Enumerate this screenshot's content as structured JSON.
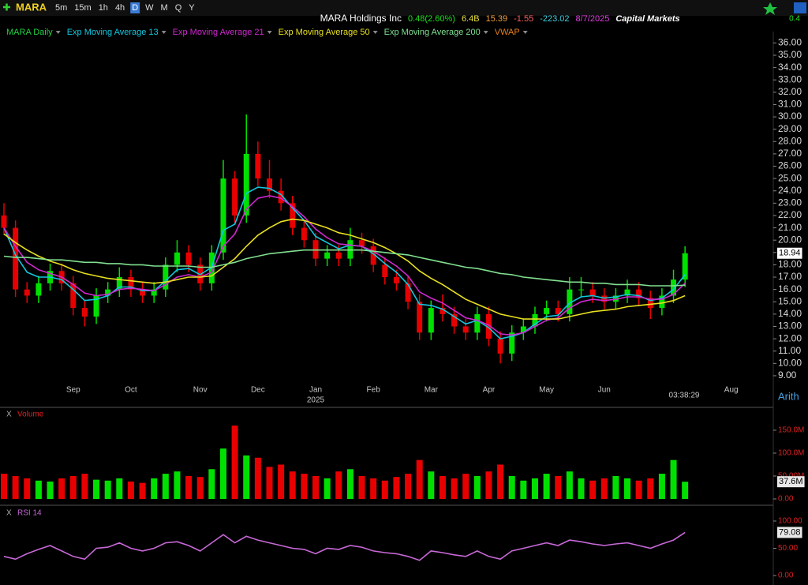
{
  "header": {
    "symbol": "MARA",
    "timeframes": [
      "5m",
      "15m",
      "1h",
      "4h",
      "D",
      "W",
      "M",
      "Q",
      "Y"
    ],
    "active_timeframe": 4,
    "quote": [
      {
        "text": "MARA Holdings Inc",
        "color": "#ffffff"
      },
      {
        "text": "0.48(2.60%)",
        "color": "#20e020"
      },
      {
        "text": "6.4B",
        "color": "#e8e040"
      },
      {
        "text": "15.39",
        "color": "#f0a040"
      },
      {
        "text": "-1.55",
        "color": "#ff6060"
      },
      {
        "text": "-223.02",
        "color": "#40d0e0"
      },
      {
        "text": "8/7/2025",
        "color": "#e040e0"
      },
      {
        "text": "Capital Markets",
        "color": "#ffffff"
      }
    ],
    "corner_value": "0.4"
  },
  "chart_data": [
    {
      "type": "candlestick",
      "title": "MARA Daily",
      "title_color": "#20d040",
      "up_color": "#00e000",
      "down_color": "#e80000",
      "categories": [
        null,
        null,
        null,
        null,
        null,
        null,
        "Sep",
        null,
        null,
        null,
        null,
        "Oct",
        null,
        null,
        null,
        null,
        null,
        "Nov",
        null,
        null,
        null,
        null,
        "Dec",
        null,
        null,
        null,
        null,
        "Jan",
        null,
        null,
        null,
        null,
        "Feb",
        null,
        null,
        null,
        null,
        "Mar",
        null,
        null,
        null,
        null,
        "Apr",
        null,
        null,
        null,
        null,
        "May",
        null,
        null,
        null,
        null,
        "Jun",
        null,
        null,
        null,
        null,
        null,
        null,
        null,
        null,
        null,
        null,
        "Aug"
      ],
      "year_label": "2025",
      "timestamp": "03:38:29",
      "scale_label": "Arith",
      "open": [
        22,
        21,
        16,
        15.5,
        16.5,
        17.5,
        16.5,
        14.5,
        13.8,
        15.5,
        16,
        17,
        16,
        15.5,
        16,
        18,
        19,
        18,
        16.5,
        19,
        25,
        22,
        27,
        25,
        24,
        23,
        21,
        20,
        18.5,
        19,
        18.5,
        20,
        19.5,
        18,
        17,
        16.5,
        15,
        12.5,
        14.5,
        14,
        13,
        12.5,
        14,
        12,
        10.8,
        12.5,
        13,
        14,
        14.5,
        14,
        16,
        16,
        15.5,
        15,
        15.5,
        16,
        15.3,
        14.5,
        15.5,
        16.8,
        null,
        null,
        null,
        null
      ],
      "high": [
        23,
        21.6,
        16.6,
        17.1,
        18.1,
        18.1,
        17.1,
        15.1,
        16.1,
        16.6,
        17.8,
        17.6,
        16.6,
        16.6,
        18.6,
        20,
        19.6,
        18.6,
        19.6,
        26.5,
        25.6,
        30.2,
        28,
        26.5,
        25,
        23.6,
        21.6,
        20.6,
        19.6,
        19.6,
        21,
        20.6,
        20.1,
        18.6,
        17.6,
        17.1,
        15.6,
        15.1,
        15.6,
        14.6,
        13.6,
        14.6,
        14.6,
        12.6,
        13.1,
        13.6,
        14.6,
        15.1,
        15.1,
        17,
        17,
        16.6,
        16.1,
        16.1,
        16.8,
        16.6,
        15.9,
        16.1,
        17.6,
        19.5,
        null,
        null,
        null,
        null
      ],
      "low": [
        20.4,
        15.4,
        14.9,
        14.9,
        15.9,
        15.9,
        13.9,
        13,
        13.2,
        14.9,
        15.4,
        15.4,
        14.9,
        14.9,
        15.4,
        17.4,
        17.4,
        15.9,
        15.9,
        18.4,
        21.4,
        21.4,
        24.4,
        23.4,
        22.4,
        20.4,
        19.4,
        17.9,
        17.9,
        17.9,
        17.9,
        18.9,
        17.4,
        16.4,
        15.9,
        14.4,
        11.9,
        11.9,
        13.4,
        12.4,
        11.9,
        11.9,
        11.4,
        10,
        10.2,
        11.9,
        12.4,
        13.4,
        13.4,
        13.4,
        15.4,
        14.9,
        14.4,
        14.4,
        14.9,
        14.7,
        13.6,
        13.9,
        14.9,
        16.2,
        null,
        null,
        null,
        null
      ],
      "close": [
        21,
        16,
        15.5,
        16.5,
        17.5,
        16.5,
        14.5,
        13.8,
        15.5,
        16,
        17,
        16,
        15.5,
        16,
        18,
        19,
        18,
        16.5,
        19,
        25,
        22,
        27,
        25,
        24,
        23,
        21,
        20,
        18.5,
        19,
        18.5,
        20,
        19.5,
        18,
        17,
        16.5,
        15,
        12.5,
        14.5,
        14,
        13,
        12.5,
        14,
        12,
        10.8,
        12.5,
        13,
        14,
        14.5,
        14,
        16,
        16,
        15.5,
        15,
        15.5,
        16,
        15.3,
        14.5,
        15.5,
        16.8,
        18.94,
        null,
        null,
        null,
        null
      ],
      "close_labels": [
        null,
        null,
        null,
        null,
        null,
        null,
        null,
        null,
        null,
        null,
        null,
        null,
        null,
        null,
        null,
        null,
        null,
        null,
        null,
        null,
        null,
        null,
        null,
        null,
        null,
        null,
        null,
        null,
        null,
        null,
        null,
        null,
        null,
        null,
        null,
        null,
        null,
        null,
        null,
        null,
        null,
        null,
        null,
        null,
        null,
        null,
        null,
        null,
        null,
        null,
        null,
        null,
        null,
        null,
        null,
        null,
        null,
        null,
        null,
        "18.94",
        null,
        null,
        null,
        null
      ],
      "series": [
        {
          "name": "Exp Moving Average 13",
          "color": "#10c8e0",
          "values": [
            21,
            18.8,
            17.4,
            17,
            17,
            16.8,
            16,
            15.1,
            15.2,
            15.5,
            16.2,
            16.2,
            15.9,
            15.9,
            16.7,
            17.6,
            17.7,
            17.2,
            17.8,
            20.8,
            21.3,
            23.8,
            24.3,
            24.2,
            23.7,
            22.6,
            21.6,
            20.3,
            19.8,
            19.3,
            19.6,
            19.5,
            18.9,
            18.1,
            17.4,
            16.4,
            14.8,
            14.7,
            14.4,
            13.8,
            13.2,
            13.5,
            12.9,
            12,
            12.2,
            12.5,
            13.2,
            13.8,
            13.9,
            14.9,
            15.4,
            15.5,
            15.3,
            15.4,
            15.6,
            15.5,
            15.1,
            15.3,
            16,
            17.2,
            null,
            null,
            null,
            null
          ]
        },
        {
          "name": "Exp Moving Average 21",
          "color": "#d028d0",
          "values": [
            21,
            19.5,
            18.2,
            17.6,
            17.3,
            17,
            16.4,
            15.7,
            15.5,
            15.6,
            16,
            16.1,
            16,
            15.9,
            16.4,
            17,
            17.2,
            17,
            17.4,
            19.5,
            20.5,
            22.5,
            23.4,
            23.6,
            23.4,
            22.7,
            21.9,
            20.9,
            20.2,
            19.7,
            19.6,
            19.5,
            19.1,
            18.5,
            17.9,
            17.1,
            15.8,
            15.3,
            14.9,
            14.3,
            13.7,
            13.5,
            13.1,
            12.4,
            12.3,
            12.5,
            13,
            13.5,
            13.7,
            14.5,
            15,
            15.2,
            15.1,
            15.2,
            15.4,
            15.4,
            15.2,
            15.2,
            15.6,
            16.5,
            null,
            null,
            null,
            null
          ]
        },
        {
          "name": "Exp Moving Average 50",
          "color": "#e8e020",
          "values": [
            20.5,
            19.8,
            19.2,
            18.7,
            18.3,
            18,
            17.6,
            17.3,
            17.1,
            16.9,
            16.8,
            16.7,
            16.6,
            16.5,
            16.6,
            16.8,
            17,
            17,
            17.1,
            17.8,
            18.5,
            19.5,
            20.4,
            21,
            21.5,
            21.7,
            21.6,
            21.3,
            21,
            20.6,
            20.4,
            20.1,
            19.8,
            19.4,
            18.9,
            18.3,
            17.5,
            16.9,
            16.4,
            15.8,
            15.2,
            14.8,
            14.4,
            14,
            13.8,
            13.6,
            13.6,
            13.6,
            13.6,
            13.8,
            14,
            14.2,
            14.3,
            14.4,
            14.6,
            14.7,
            14.8,
            14.9,
            15.1,
            15.5,
            null,
            null,
            null,
            null
          ]
        },
        {
          "name": "Exp Moving Average 200",
          "color": "#80e090",
          "values": [
            18.7,
            18.6,
            18.6,
            18.5,
            18.4,
            18.4,
            18.3,
            18.2,
            18.2,
            18.1,
            18.1,
            18,
            18,
            17.9,
            17.9,
            17.9,
            17.9,
            17.8,
            17.8,
            18,
            18.2,
            18.5,
            18.7,
            18.9,
            19,
            19.1,
            19.2,
            19.2,
            19.2,
            19.2,
            19.2,
            19.2,
            19.1,
            19,
            18.9,
            18.8,
            18.6,
            18.4,
            18.2,
            18,
            17.8,
            17.7,
            17.5,
            17.3,
            17.2,
            17,
            16.9,
            16.8,
            16.7,
            16.6,
            16.6,
            16.5,
            16.5,
            16.4,
            16.4,
            16.4,
            16.3,
            16.3,
            16.3,
            16.35,
            null,
            null,
            null,
            null
          ]
        }
      ],
      "indicators": [
        {
          "name": "VWAP",
          "color": "#e8801c"
        }
      ],
      "ylim": [
        8.1,
        36.6
      ],
      "yticks": [
        {
          "value": 9,
          "label": "9.00"
        },
        {
          "value": 10,
          "label": "10.00"
        },
        {
          "value": 11,
          "label": "11.00"
        },
        {
          "value": 12,
          "label": "12.00"
        },
        {
          "value": 13,
          "label": "13.00"
        },
        {
          "value": 14,
          "label": "14.00"
        },
        {
          "value": 15,
          "label": "15.00"
        },
        {
          "value": 16,
          "label": "16.00"
        },
        {
          "value": 17,
          "label": "17.00"
        },
        {
          "value": 18,
          "label": "18.00"
        },
        {
          "value": 19,
          "label": "19.00"
        },
        {
          "value": 20,
          "label": "20.00"
        },
        {
          "value": 21,
          "label": "21.00"
        },
        {
          "value": 22,
          "label": "22.00"
        },
        {
          "value": 23,
          "label": "23.00"
        },
        {
          "value": 24,
          "label": "24.00"
        },
        {
          "value": 25,
          "label": "25.00"
        },
        {
          "value": 26,
          "label": "26.00"
        },
        {
          "value": 27,
          "label": "27.00"
        },
        {
          "value": 28,
          "label": "28.00"
        },
        {
          "value": 29,
          "label": "29.00"
        },
        {
          "value": 30,
          "label": "30.00"
        },
        {
          "value": 31,
          "label": "31.00"
        },
        {
          "value": 32,
          "label": "32.00"
        },
        {
          "value": 33,
          "label": "33.00"
        },
        {
          "value": 34,
          "label": "34.00"
        },
        {
          "value": 35,
          "label": "35.00"
        },
        {
          "value": 36,
          "label": "36.00"
        }
      ]
    },
    {
      "type": "bar",
      "title": "Volume",
      "close_glyph": "X",
      "title_color": "#e02020",
      "values": [
        55000000,
        50000000,
        45000000,
        40000000,
        38000000,
        45000000,
        50000000,
        55000000,
        42000000,
        40000000,
        45000000,
        38000000,
        35000000,
        45000000,
        55000000,
        60000000,
        50000000,
        48000000,
        65000000,
        110000000,
        160000000,
        95000000,
        90000000,
        70000000,
        75000000,
        60000000,
        55000000,
        50000000,
        45000000,
        60000000,
        65000000,
        50000000,
        45000000,
        40000000,
        48000000,
        55000000,
        85000000,
        60000000,
        50000000,
        45000000,
        55000000,
        50000000,
        60000000,
        75000000,
        50000000,
        40000000,
        45000000,
        55000000,
        50000000,
        60000000,
        45000000,
        40000000,
        45000000,
        50000000,
        45000000,
        40000000,
        45000000,
        55000000,
        85000000,
        37600000,
        null,
        null,
        null,
        null
      ],
      "value_labels": [
        null,
        null,
        null,
        null,
        null,
        null,
        null,
        null,
        null,
        null,
        null,
        null,
        null,
        null,
        null,
        null,
        null,
        null,
        null,
        null,
        null,
        null,
        null,
        null,
        null,
        null,
        null,
        null,
        null,
        null,
        null,
        null,
        null,
        null,
        null,
        null,
        null,
        null,
        null,
        null,
        null,
        null,
        null,
        null,
        null,
        null,
        null,
        null,
        null,
        null,
        null,
        null,
        null,
        null,
        null,
        null,
        null,
        null,
        null,
        "37.6M",
        null,
        null,
        null,
        null
      ],
      "ylim": [
        0,
        193000000
      ],
      "yticks": [
        {
          "value": 0,
          "label": "0.00"
        },
        {
          "value": 50000000,
          "label": "50.00M"
        },
        {
          "value": 100000000,
          "label": "100.0M"
        },
        {
          "value": 150000000,
          "label": "150.0M"
        }
      ]
    },
    {
      "type": "line",
      "title": "RSI 14",
      "close_glyph": "X",
      "color": "#c868d8",
      "values": [
        35,
        30,
        40,
        48,
        55,
        45,
        35,
        30,
        50,
        52,
        60,
        50,
        45,
        50,
        60,
        62,
        55,
        45,
        60,
        75,
        60,
        72,
        65,
        60,
        55,
        50,
        48,
        40,
        50,
        48,
        55,
        52,
        45,
        42,
        40,
        35,
        28,
        45,
        42,
        38,
        35,
        45,
        35,
        30,
        45,
        50,
        55,
        60,
        55,
        65,
        62,
        58,
        55,
        58,
        60,
        55,
        50,
        58,
        65,
        79.08,
        null,
        null,
        null,
        null
      ],
      "value_labels": [
        null,
        null,
        null,
        null,
        null,
        null,
        null,
        null,
        null,
        null,
        null,
        null,
        null,
        null,
        null,
        null,
        null,
        null,
        null,
        null,
        null,
        null,
        null,
        null,
        null,
        null,
        null,
        null,
        null,
        null,
        null,
        null,
        null,
        null,
        null,
        null,
        null,
        null,
        null,
        null,
        null,
        null,
        null,
        null,
        null,
        null,
        null,
        null,
        null,
        null,
        null,
        null,
        null,
        null,
        null,
        null,
        null,
        null,
        null,
        "79.08",
        null,
        null,
        null,
        null
      ],
      "ylim": [
        -8.7,
        121.7
      ],
      "yticks": [
        {
          "value": 0,
          "label": "0.00"
        },
        {
          "value": 50,
          "label": "50.00"
        },
        {
          "value": 100,
          "label": "100.00"
        }
      ]
    }
  ]
}
